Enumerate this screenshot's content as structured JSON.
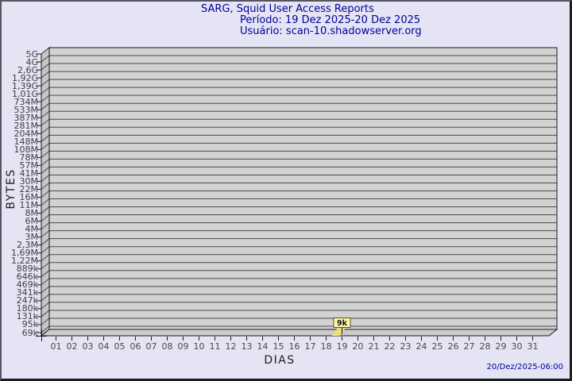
{
  "header": {
    "title": "SARG, Squid User Access Reports",
    "period": "Período: 19 Dez 2025-20 Dez 2025",
    "user": "Usuário: scan-10.shadowserver.org"
  },
  "footer": {
    "generated": "20/Dez/2025-06:00"
  },
  "chart_data": {
    "type": "bar",
    "style": "3d",
    "title": "SARG, Squid User Access Reports",
    "subtitle": [
      "Período: 19 Dez 2025-20 Dez 2025",
      "Usuário: scan-10.shadowserver.org"
    ],
    "xlabel": "DIAS",
    "ylabel": "BYTES",
    "grid": true,
    "y_scale": "logarithmic",
    "y_tick_labels": [
      "5G",
      "4G",
      "2,6G",
      "1,92G",
      "1,39G",
      "1,01G",
      "734M",
      "533M",
      "387M",
      "281M",
      "204M",
      "148M",
      "108M",
      "78M",
      "57M",
      "41M",
      "30M",
      "22M",
      "16M",
      "11M",
      "8M",
      "6M",
      "4M",
      "3M",
      "2,3M",
      "1,69M",
      "1,22M",
      "889k",
      "646k",
      "469k",
      "341k",
      "247k",
      "180k",
      "131k",
      "95k",
      "69k"
    ],
    "x_tick_labels": [
      "01",
      "02",
      "03",
      "04",
      "05",
      "06",
      "07",
      "08",
      "09",
      "10",
      "11",
      "12",
      "13",
      "14",
      "15",
      "16",
      "17",
      "18",
      "19",
      "20",
      "21",
      "22",
      "23",
      "24",
      "25",
      "26",
      "27",
      "28",
      "29",
      "30",
      "31"
    ],
    "bars": [
      {
        "x": "19",
        "label": "9k",
        "value_bytes": 9000
      }
    ]
  },
  "colors": {
    "background": "#e4e4f4",
    "title_text": "#00009a",
    "plot_face": "#d2d2d2",
    "plot_wall": "#c6c6c6",
    "plot_floor": "#cccccc",
    "grid_line": "#4a4a4a",
    "edge_line": "#1a1a1a",
    "axis_text": "#3f3f3f",
    "bar_fill": "#f0df72",
    "marker_fill": "#fcf6a8",
    "marker_border": "#55551a"
  }
}
